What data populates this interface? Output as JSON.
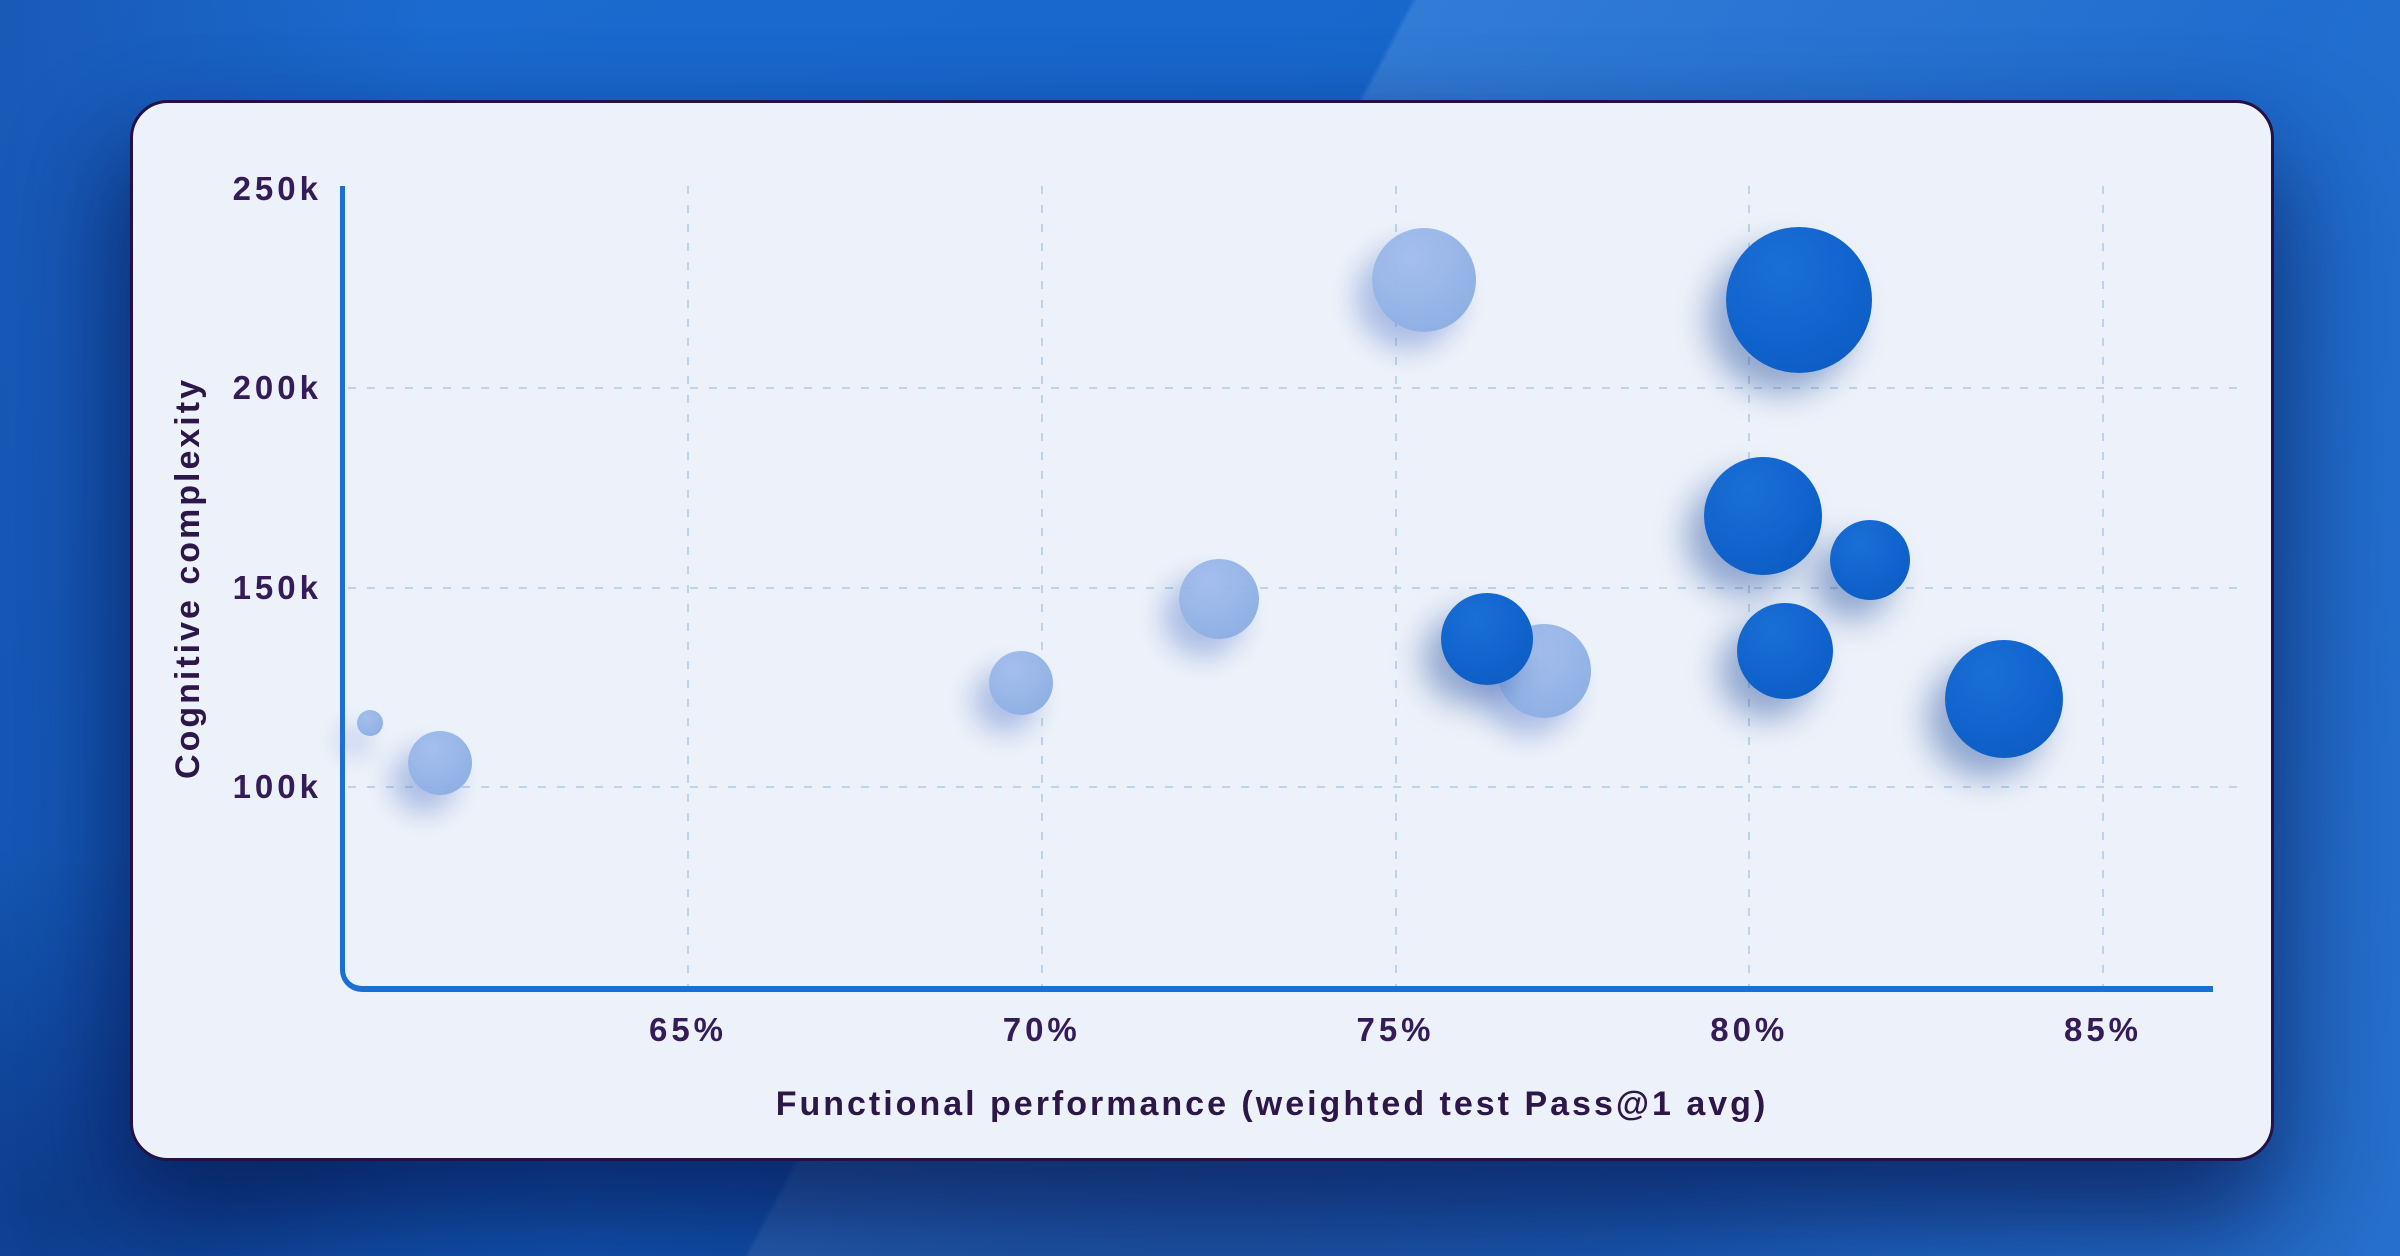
{
  "chart_data": {
    "type": "scatter",
    "subtype": "bubble",
    "title": "",
    "xlabel": "Functional performance (weighted test Pass@1 avg)",
    "ylabel": "Cognitive complexity",
    "x_unit": "%",
    "y_unit": "k",
    "xlim": [
      60.1,
      86.5
    ],
    "ylim_k": [
      50,
      251
    ],
    "grid": "dashed",
    "legend": "none",
    "x_ticks": [
      {
        "label": "65%",
        "value": 65
      },
      {
        "label": "70%",
        "value": 70
      },
      {
        "label": "75%",
        "value": 75
      },
      {
        "label": "80%",
        "value": 80
      },
      {
        "label": "85%",
        "value": 85
      }
    ],
    "y_ticks": [
      {
        "label": "250k",
        "value": 250,
        "gridline": false
      },
      {
        "label": "200k",
        "value": 200,
        "gridline": true
      },
      {
        "label": "150k",
        "value": 150,
        "gridline": true
      },
      {
        "label": "100k",
        "value": 100,
        "gridline": true
      }
    ],
    "series": [
      {
        "name": "light-blue-bubbles",
        "color": "#93b3e7",
        "points": [
          {
            "x": 60.5,
            "y_k": 116,
            "r": 13
          },
          {
            "x": 61.5,
            "y_k": 106,
            "r": 32
          },
          {
            "x": 69.7,
            "y_k": 126,
            "r": 32
          },
          {
            "x": 72.5,
            "y_k": 147,
            "r": 40
          },
          {
            "x": 75.4,
            "y_k": 227,
            "r": 52
          },
          {
            "x": 77.1,
            "y_k": 129,
            "r": 47
          }
        ]
      },
      {
        "name": "dark-blue-bubbles",
        "color": "#1063cc",
        "points": [
          {
            "x": 76.3,
            "y_k": 137,
            "r": 46
          },
          {
            "x": 80.7,
            "y_k": 222,
            "r": 73
          },
          {
            "x": 80.2,
            "y_k": 168,
            "r": 59
          },
          {
            "x": 81.7,
            "y_k": 157,
            "r": 40
          },
          {
            "x": 80.5,
            "y_k": 134,
            "r": 48
          },
          {
            "x": 83.6,
            "y_k": 122,
            "r": 59
          }
        ]
      }
    ]
  },
  "colors": {
    "background_blue": "#1565cb",
    "card_background": "#edf2fa",
    "card_border": "#241145",
    "axis_line": "#1b6fd3",
    "gridline": "#bdd3ea",
    "tick_text": "#351b58",
    "title_text": "#2d1748",
    "bubble_dark": "#1063cc",
    "bubble_light": "#93b3e7"
  }
}
